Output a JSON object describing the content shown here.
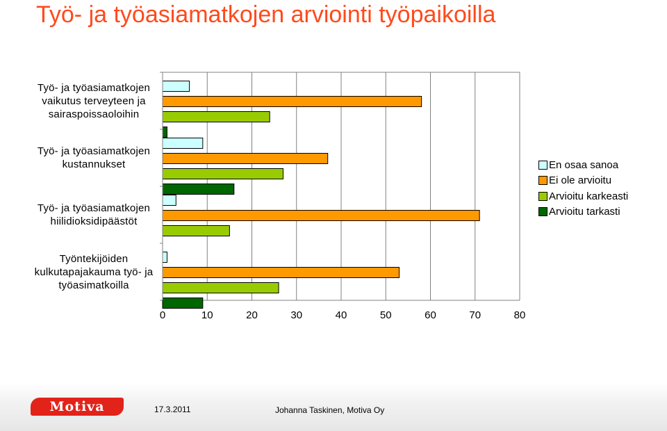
{
  "slide": {
    "title": "Työ- ja työasiamatkojen arviointi työpaikoilla"
  },
  "chart_data": {
    "type": "bar",
    "orientation": "horizontal",
    "categories": [
      "Työ- ja työasiamatkojen vaikutus terveyteen ja sairaspoissaoloihin",
      "Työ- ja työasiamatkojen kustannukset",
      "Työ- ja työasiamatkojen hiilidioksidipäästöt",
      "Työntekijöiden kulkutapajakauma työ- ja työasimatkoilla"
    ],
    "category_lines": [
      [
        "Työ- ja työasiamatkojen",
        "vaikutus terveyteen ja",
        "sairaspoissaoloihin"
      ],
      [
        "Työ- ja työasiamatkojen",
        "kustannukset"
      ],
      [
        "Työ- ja työasiamatkojen",
        "hiilidioksidipäästöt"
      ],
      [
        "Työntekijöiden",
        "kulkutapajakauma työ- ja",
        "työasimatkoilla"
      ]
    ],
    "series": [
      {
        "name": "En osaa sanoa",
        "color": "#ccffff",
        "values": [
          6,
          9,
          3,
          1
        ]
      },
      {
        "name": "Ei ole arvioitu",
        "color": "#ff9900",
        "values": [
          58,
          37,
          71,
          53
        ]
      },
      {
        "name": "Arvioitu karkeasti",
        "color": "#99cc00",
        "values": [
          24,
          27,
          15,
          26
        ]
      },
      {
        "name": "Arvioitu tarkasti",
        "color": "#006600",
        "values": [
          1,
          16,
          0,
          9
        ]
      }
    ],
    "xlim": [
      0,
      80
    ],
    "xticks": [
      "0",
      "10",
      "20",
      "30",
      "40",
      "50",
      "60",
      "70",
      "80"
    ],
    "grid": true,
    "legend_position": "right"
  },
  "footer": {
    "logo_text": "Motiva",
    "date": "17.3.2011",
    "author": "Johanna Taskinen, Motiva Oy"
  }
}
